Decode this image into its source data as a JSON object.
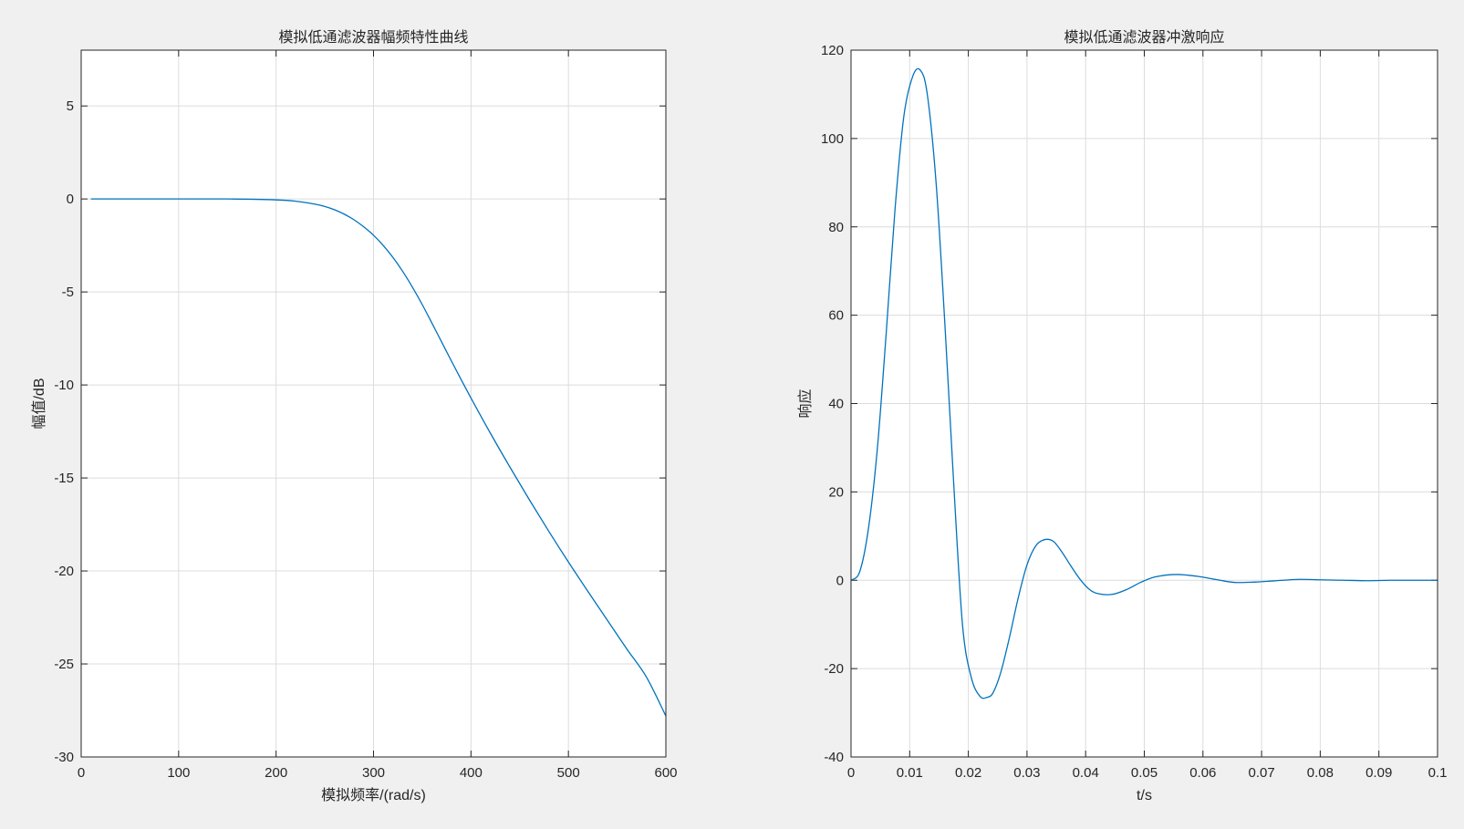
{
  "colors": {
    "figure_background": "#f0f0f0",
    "axes_background": "#ffffff",
    "grid": "#dcdcdc",
    "axis": "#262626",
    "series": "#0072bd"
  },
  "chart_data": [
    {
      "type": "line",
      "title": "模拟低通滤波器幅频特性曲线",
      "xlabel": "模拟频率/(rad/s)",
      "ylabel": "幅值/dB",
      "xlim": [
        0,
        600
      ],
      "ylim": [
        -30,
        8
      ],
      "xticks": [
        0,
        100,
        200,
        300,
        400,
        500,
        600
      ],
      "yticks": [
        -30,
        -25,
        -20,
        -15,
        -10,
        -5,
        0,
        5
      ],
      "xtick_labels": [
        "0",
        "100",
        "200",
        "300",
        "400",
        "500",
        "600"
      ],
      "ytick_labels": [
        "-30",
        "-25",
        "-20",
        "-15",
        "-10",
        "-5",
        "0",
        "5"
      ],
      "grid": true,
      "series": [
        {
          "x": [
            10,
            50,
            100,
            150,
            200,
            220,
            240,
            250,
            260,
            270,
            280,
            290,
            300,
            310,
            320,
            330,
            340,
            350,
            360,
            370,
            380,
            390,
            400,
            420,
            440,
            460,
            480,
            500,
            520,
            540,
            560,
            580,
            600
          ],
          "y": [
            0,
            0,
            0,
            0,
            -0.05,
            -0.12,
            -0.28,
            -0.4,
            -0.58,
            -0.82,
            -1.12,
            -1.5,
            -1.95,
            -2.5,
            -3.15,
            -3.9,
            -4.75,
            -5.68,
            -6.68,
            -7.7,
            -8.72,
            -9.72,
            -10.7,
            -12.6,
            -14.42,
            -16.18,
            -17.88,
            -19.52,
            -21.1,
            -22.65,
            -24.2,
            -25.7,
            -27.8
          ]
        }
      ]
    },
    {
      "type": "line",
      "title": "模拟低通滤波器冲激响应",
      "xlabel": "t/s",
      "ylabel": "响应",
      "xlim": [
        0,
        0.1
      ],
      "ylim": [
        -40,
        120
      ],
      "xticks": [
        0,
        0.01,
        0.02,
        0.03,
        0.04,
        0.05,
        0.06,
        0.07,
        0.08,
        0.09,
        0.1
      ],
      "yticks": [
        -40,
        -20,
        0,
        20,
        40,
        60,
        80,
        100,
        120
      ],
      "xtick_labels": [
        "0",
        "0.01",
        "0.02",
        "0.03",
        "0.04",
        "0.05",
        "0.06",
        "0.07",
        "0.08",
        "0.09",
        "0.1"
      ],
      "ytick_labels": [
        "-40",
        "-20",
        "0",
        "20",
        "40",
        "60",
        "80",
        "100",
        "120"
      ],
      "grid": true,
      "series": [
        {
          "x": [
            0,
            0.0015,
            0.003,
            0.0045,
            0.006,
            0.0075,
            0.009,
            0.0105,
            0.0118,
            0.013,
            0.0145,
            0.016,
            0.0175,
            0.019,
            0.0205,
            0.022,
            0.0232,
            0.0242,
            0.0255,
            0.027,
            0.0285,
            0.03,
            0.0315,
            0.033,
            0.0345,
            0.036,
            0.0375,
            0.039,
            0.0405,
            0.042,
            0.0445,
            0.047,
            0.0495,
            0.052,
            0.0555,
            0.059,
            0.0625,
            0.0655,
            0.069,
            0.0725,
            0.0765,
            0.08,
            0.084,
            0.088,
            0.092,
            0.096,
            0.1
          ],
          "y": [
            0,
            2,
            12,
            30,
            56,
            84,
            105,
            114,
            115.5,
            110,
            90,
            58,
            22,
            -10,
            -22,
            -26.3,
            -26.5,
            -25.5,
            -21,
            -13,
            -4,
            3.5,
            7.8,
            9.2,
            8.8,
            6.3,
            3.2,
            0.3,
            -1.9,
            -3,
            -3.2,
            -2.1,
            -0.4,
            0.8,
            1.3,
            0.9,
            0.1,
            -0.5,
            -0.4,
            -0.1,
            0.2,
            0.1,
            0,
            -0.1,
            0,
            0,
            0
          ]
        }
      ]
    }
  ]
}
